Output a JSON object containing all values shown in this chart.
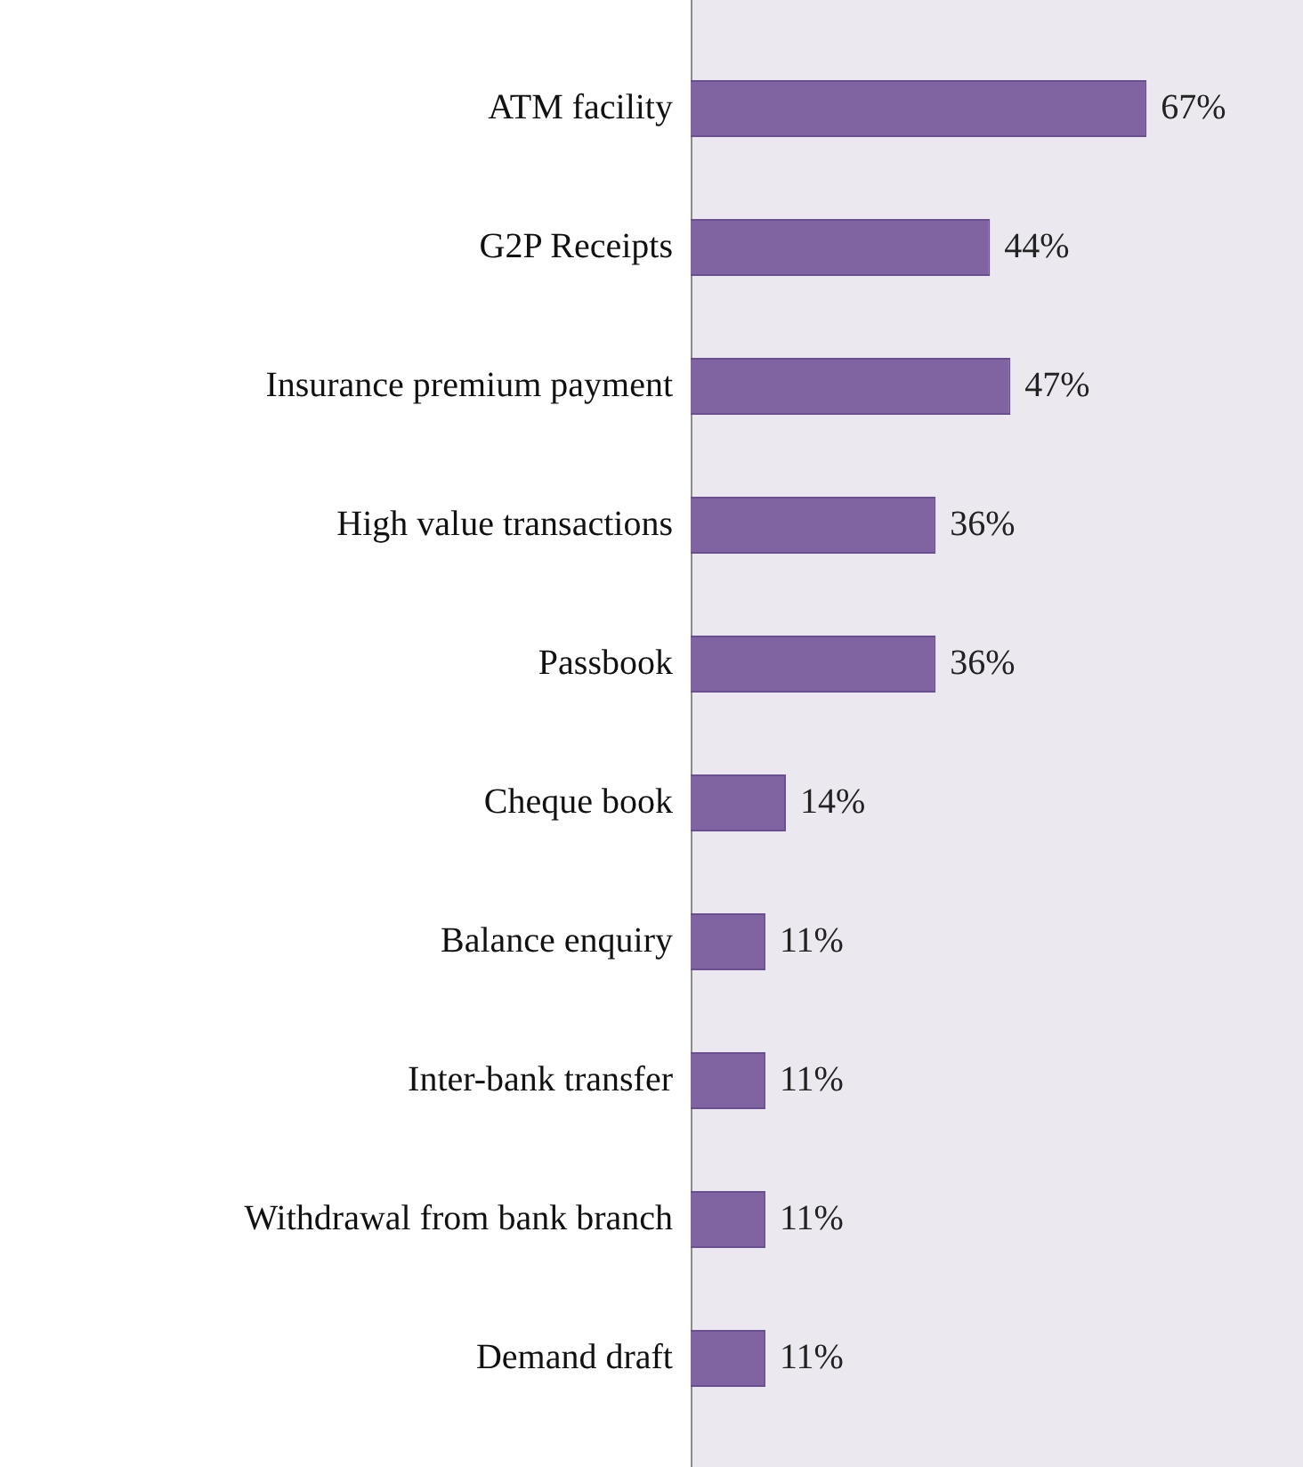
{
  "chart_data": {
    "type": "bar",
    "orientation": "horizontal",
    "categories": [
      "ATM facility",
      "G2P Receipts",
      "Insurance premium payment",
      "High value transactions",
      "Passbook",
      "Cheque book",
      "Balance enquiry",
      "Inter-bank transfer",
      "Withdrawal from bank branch",
      "Demand draft"
    ],
    "values": [
      67,
      44,
      47,
      36,
      36,
      14,
      11,
      11,
      11,
      11
    ],
    "value_labels": [
      "67%",
      "44%",
      "47%",
      "36%",
      "36%",
      "14%",
      "11%",
      "11%",
      "11%",
      "11%"
    ],
    "color": "#8064a2",
    "xlim": [
      0,
      90
    ],
    "tick_labels": "y",
    "legend": false
  }
}
